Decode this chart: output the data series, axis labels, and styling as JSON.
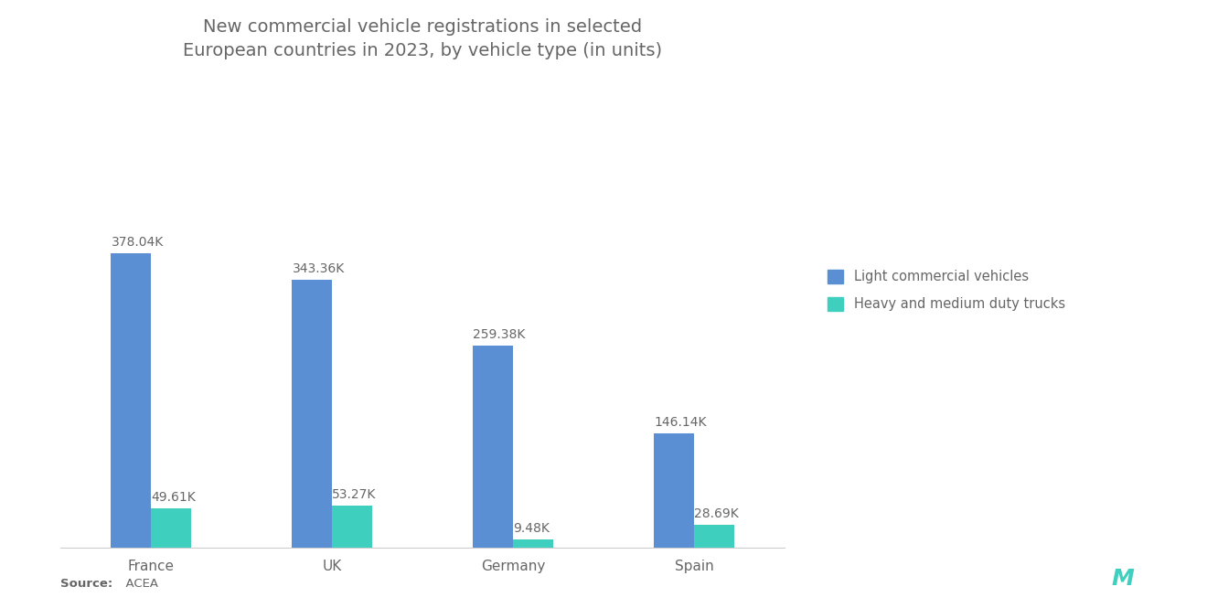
{
  "title": "New commercial vehicle registrations in selected\nEuropean countries in 2023, by vehicle type (in units)",
  "categories": [
    "France",
    "UK",
    "Germany",
    "Spain"
  ],
  "light_commercial": [
    378.04,
    343.36,
    259.38,
    146.14
  ],
  "heavy_medium": [
    49.61,
    53.27,
    9.48,
    28.69
  ],
  "light_color": "#5B8FD4",
  "heavy_color": "#3ECFBF",
  "background_color": "#FFFFFF",
  "title_color": "#666666",
  "label_color": "#666666",
  "source_bold": "Source:",
  "source_normal": "  ACEA",
  "legend_labels": [
    "Light commercial vehicles",
    "Heavy and medium duty trucks"
  ],
  "bar_width": 0.22,
  "ylim": [
    0,
    430
  ],
  "title_fontsize": 14,
  "label_fontsize": 10,
  "tick_fontsize": 11,
  "source_fontsize": 9.5
}
